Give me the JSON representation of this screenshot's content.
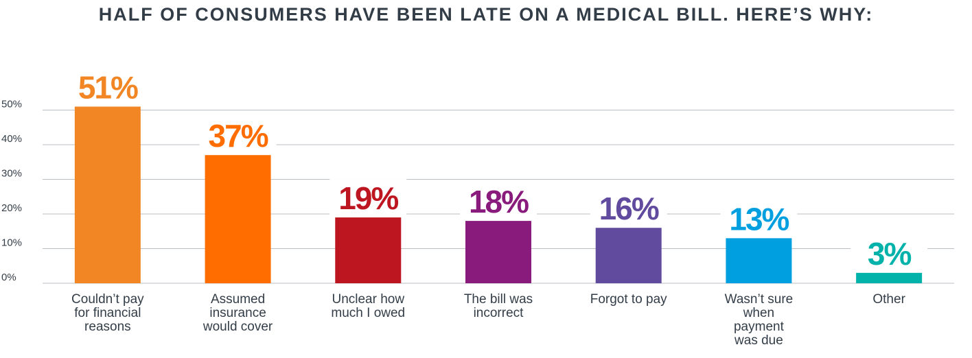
{
  "chart_data": {
    "type": "bar",
    "title": "HALF OF CONSUMERS HAVE BEEN LATE ON A MEDICAL BILL. HERE’S WHY:",
    "categories": [
      [
        "Couldn’t pay",
        "for financial",
        "reasons"
      ],
      [
        "Assumed",
        "insurance",
        "would cover"
      ],
      [
        "Unclear how",
        "much I owed"
      ],
      [
        "The bill was",
        "incorrect"
      ],
      [
        "Forgot to pay"
      ],
      [
        "Wasn’t sure",
        "when",
        "payment",
        "was due"
      ],
      [
        "Other"
      ]
    ],
    "values": [
      51,
      37,
      19,
      18,
      16,
      13,
      3
    ],
    "value_labels": [
      "51%",
      "37%",
      "19%",
      "18%",
      "16%",
      "13%",
      "3%"
    ],
    "colors": [
      "#f28524",
      "#ff6d00",
      "#be1620",
      "#891b7c",
      "#614b9f",
      "#00a0e0",
      "#00b2aa"
    ],
    "yticks": [
      0,
      10,
      20,
      30,
      40,
      50
    ],
    "ytick_labels": [
      "0%",
      "10%",
      "20%",
      "30%",
      "40%",
      "50%"
    ],
    "ylim": [
      0,
      60
    ],
    "grid": true,
    "xlabel": "",
    "ylabel": ""
  }
}
